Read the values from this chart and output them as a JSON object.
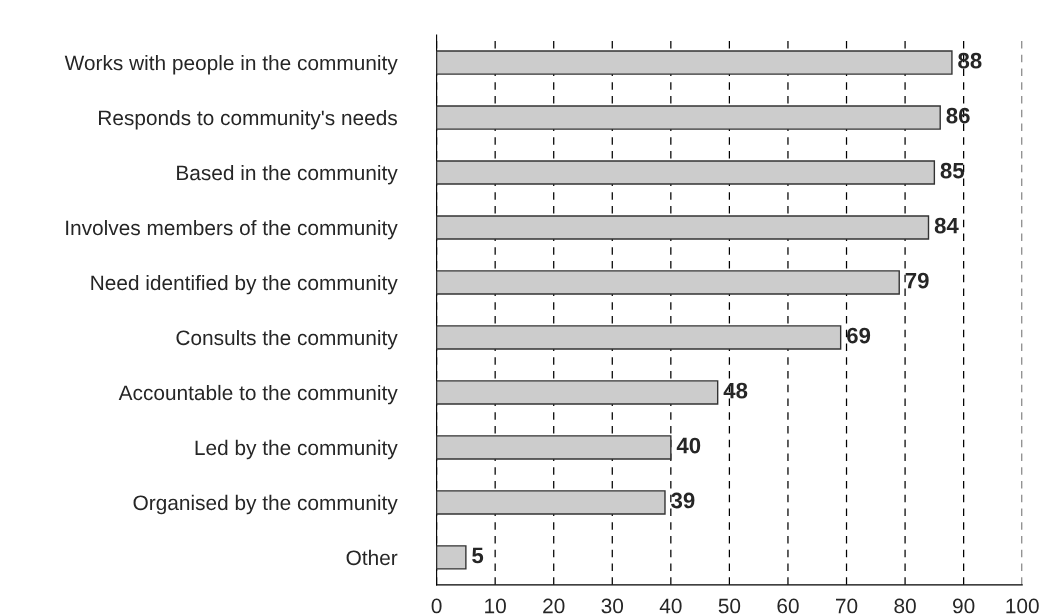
{
  "chart_data": {
    "type": "bar",
    "orientation": "horizontal",
    "categories": [
      "Works with people in the community",
      "Responds to community's needs",
      "Based in the community",
      "Involves members of the community",
      "Need identified by the community",
      "Consults the community",
      "Accountable to the community",
      "Led by the community",
      "Organised by the community",
      "Other"
    ],
    "values": [
      88,
      86,
      85,
      84,
      79,
      69,
      48,
      40,
      39,
      5
    ],
    "color": "#cccccc",
    "xlim": [
      0,
      100
    ],
    "xticks": [
      0,
      10,
      20,
      30,
      40,
      50,
      60,
      70,
      80,
      90,
      100
    ],
    "grid": "x",
    "line_style": "dashed",
    "data_labels": true
  }
}
